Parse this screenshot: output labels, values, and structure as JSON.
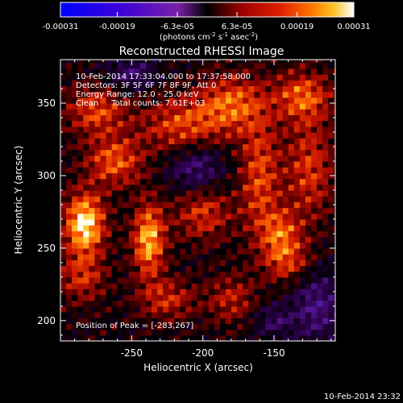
{
  "chart_data": {
    "type": "heatmap",
    "title": "Reconstructed RHESSI Image",
    "colorbar": {
      "ticks": [
        "-0.00031",
        "-0.00019",
        "-6.3e-05",
        "6.3e-05",
        "0.00019",
        "0.00031"
      ],
      "range": [
        -0.00031,
        0.00031
      ],
      "units_prefix": "(photons cm",
      "units_exp1": "-2",
      "units_mid": " s",
      "units_exp2": "-1",
      "units_mid2": " asec",
      "units_exp3": "-2",
      "units_suffix": ")"
    },
    "xlabel": "Heliocentric X (arcsec)",
    "ylabel": "Heliocentric Y (arcsec)",
    "xlim": [
      -300,
      -107
    ],
    "ylim": [
      186,
      380
    ],
    "xticks": [
      -250,
      -200,
      -150
    ],
    "xtick_labels": [
      "-250",
      "-200",
      "-150"
    ],
    "yticks": [
      200,
      250,
      300,
      350
    ],
    "ytick_labels": [
      "200",
      "250",
      "300",
      "350"
    ],
    "annotations": [
      "10-Feb-2014 17:33:04.000 to 17:37:58.000",
      "Detectors: 3F 5F 6F 7F 8F 9F, Att 0",
      "Energy Range: 12.0 - 25.0 keV",
      "Clean     Total counts: 7.61E+03"
    ],
    "peak_label": "Position of Peak = [-283,267]",
    "peak": [
      -283,
      267
    ],
    "sources": [
      {
        "x": -283,
        "y": 267,
        "amp": 1.0,
        "sx": 10,
        "sy": 15
      },
      {
        "x": -238,
        "y": 256,
        "amp": 0.85,
        "sx": 8,
        "sy": 18
      },
      {
        "x": -262,
        "y": 310,
        "amp": 0.6,
        "sx": 14,
        "sy": 12
      },
      {
        "x": -275,
        "y": 345,
        "amp": 0.55,
        "sx": 15,
        "sy": 12
      },
      {
        "x": -215,
        "y": 335,
        "amp": 0.55,
        "sx": 20,
        "sy": 14
      },
      {
        "x": -180,
        "y": 350,
        "amp": 0.6,
        "sx": 16,
        "sy": 14
      },
      {
        "x": -130,
        "y": 355,
        "amp": 0.6,
        "sx": 14,
        "sy": 12
      },
      {
        "x": -160,
        "y": 300,
        "amp": 0.55,
        "sx": 10,
        "sy": 30
      },
      {
        "x": -125,
        "y": 305,
        "amp": 0.5,
        "sx": 12,
        "sy": 25
      },
      {
        "x": -200,
        "y": 275,
        "amp": 0.5,
        "sx": 14,
        "sy": 14
      },
      {
        "x": -145,
        "y": 260,
        "amp": 0.55,
        "sx": 10,
        "sy": 12
      },
      {
        "x": -140,
        "y": 240,
        "amp": 0.45,
        "sx": 12,
        "sy": 10
      },
      {
        "x": -285,
        "y": 230,
        "amp": 0.45,
        "sx": 12,
        "sy": 12
      },
      {
        "x": -225,
        "y": 215,
        "amp": 0.45,
        "sx": 14,
        "sy": 10
      },
      {
        "x": -180,
        "y": 215,
        "amp": 0.4,
        "sx": 12,
        "sy": 12
      },
      {
        "x": -250,
        "y": 370,
        "amp": -0.45,
        "sx": 12,
        "sy": 8
      },
      {
        "x": -205,
        "y": 305,
        "amp": -0.5,
        "sx": 14,
        "sy": 12
      },
      {
        "x": -120,
        "y": 210,
        "amp": -0.5,
        "sx": 12,
        "sy": 18
      },
      {
        "x": -150,
        "y": 200,
        "amp": -0.35,
        "sx": 10,
        "sy": 8
      }
    ]
  },
  "footer": {
    "timestamp": "10-Feb-2014 23:32"
  }
}
